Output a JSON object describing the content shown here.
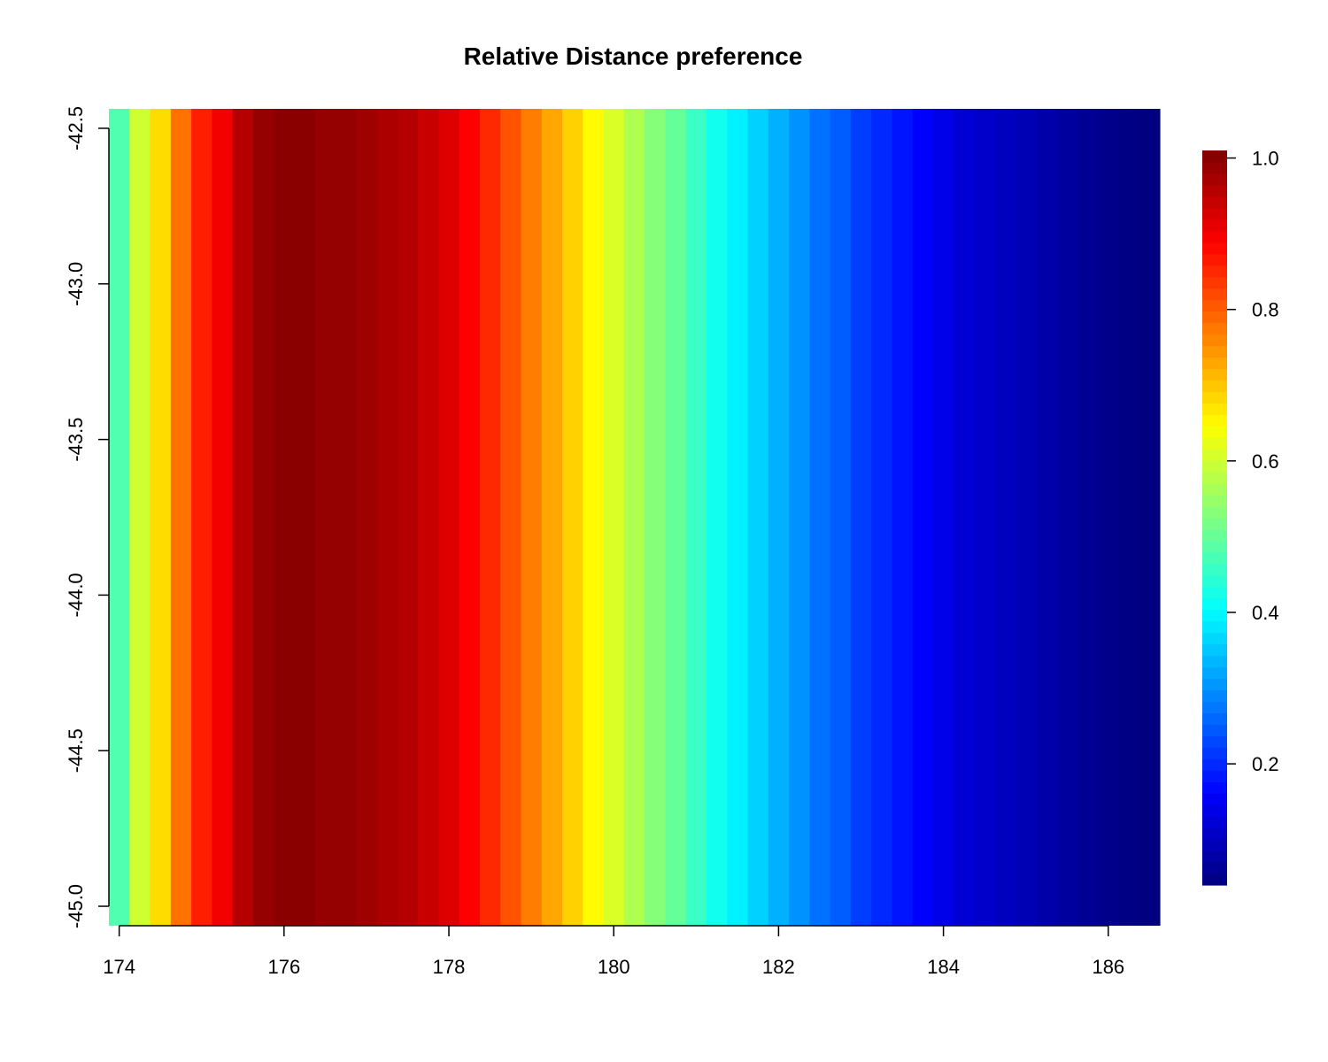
{
  "chart_data": {
    "type": "heatmap",
    "title": "Relative Distance preference",
    "xlabel": "",
    "ylabel": "",
    "xlim": [
      173.875,
      186.625
    ],
    "ylim": [
      -45.0625,
      -42.4375
    ],
    "x_ticks": [
      174,
      176,
      178,
      180,
      182,
      184,
      186
    ],
    "x_tick_labels": [
      "174",
      "176",
      "178",
      "180",
      "182",
      "184",
      "186"
    ],
    "y_ticks": [
      -42.5,
      -43.0,
      -43.5,
      -44.0,
      -44.5,
      -45.0
    ],
    "y_tick_labels": [
      "-42.5",
      "-43.0",
      "-43.5",
      "-44.0",
      "-44.5",
      "-45.0"
    ],
    "colorbar": {
      "range": [
        0.04,
        1.01
      ],
      "ticks": [
        0.2,
        0.4,
        0.6,
        0.8,
        1.0
      ],
      "tick_labels": [
        "0.2",
        "0.4",
        "0.6",
        "0.8",
        "1.0"
      ],
      "colormap": "jet"
    },
    "columns": {
      "x_start": 173.875,
      "x_step": 0.25,
      "values": [
        0.48,
        0.6,
        0.68,
        0.78,
        0.86,
        0.9,
        0.96,
        0.99,
        1.0,
        1.0,
        0.99,
        0.99,
        0.98,
        0.97,
        0.96,
        0.94,
        0.92,
        0.89,
        0.85,
        0.81,
        0.77,
        0.73,
        0.69,
        0.65,
        0.61,
        0.57,
        0.53,
        0.5,
        0.46,
        0.42,
        0.39,
        0.36,
        0.33,
        0.3,
        0.27,
        0.25,
        0.22,
        0.2,
        0.18,
        0.16,
        0.14,
        0.12,
        0.11,
        0.1,
        0.09,
        0.08,
        0.07,
        0.06,
        0.05,
        0.045,
        0.04
      ]
    },
    "grid": false,
    "legend": "colorbar-right"
  }
}
